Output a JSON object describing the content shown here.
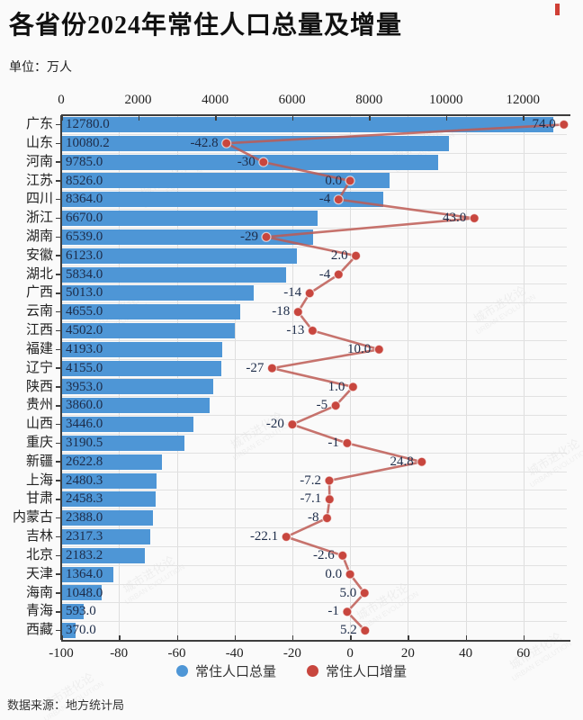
{
  "page": {
    "title": "各省份2024年常住人口总量及增量",
    "unit": "单位：万人",
    "source": "数据来源：地方统计局",
    "watermark_cn": "城市进化论",
    "watermark_en": "URBAN EVOLUTION",
    "accent_red": "#cf3f35",
    "background": "#fafafa"
  },
  "legend": [
    {
      "label": "常住人口总量",
      "color": "#4e96d6"
    },
    {
      "label": "常住人口增量",
      "color": "#c8463e"
    }
  ],
  "chart_data": {
    "type": "bar",
    "orientation": "horizontal",
    "title": "各省份2024年常住人口总量及增量",
    "unit": "万人",
    "grid": true,
    "legend_position": "bottom",
    "categories": [
      "广东",
      "山东",
      "河南",
      "江苏",
      "四川",
      "浙江",
      "湖南",
      "安徽",
      "湖北",
      "广西",
      "云南",
      "江西",
      "福建",
      "辽宁",
      "陕西",
      "贵州",
      "山西",
      "重庆",
      "新疆",
      "上海",
      "甘肃",
      "内蒙古",
      "吉林",
      "北京",
      "天津",
      "海南",
      "青海",
      "西藏"
    ],
    "series": [
      {
        "name": "常住人口总量",
        "type": "bar",
        "color": "#4e96d6",
        "values": [
          12780.0,
          10080.2,
          9785.0,
          8526.0,
          8364.0,
          6670.0,
          6539.0,
          6123.0,
          5834.0,
          5013.0,
          4655.0,
          4502.0,
          4193.0,
          4155.0,
          3953.0,
          3860.0,
          3446.0,
          3190.5,
          2622.8,
          2480.3,
          2458.3,
          2388.0,
          2317.3,
          2183.2,
          1364.0,
          1048.0,
          593.0,
          370.0
        ],
        "labels": [
          "12780.0",
          "10080.2",
          "9785.0",
          "8526.0",
          "8364.0",
          "6670.0",
          "6539.0",
          "6123.0",
          "5834.0",
          "5013.0",
          "4655.0",
          "4502.0",
          "4193.0",
          "4155.0",
          "3953.0",
          "3860.0",
          "3446.0",
          "3190.5",
          "2622.8",
          "2480.3",
          "2458.3",
          "2388.0",
          "2317.3",
          "2183.2",
          "1364.0",
          "1048.0",
          "593.0",
          "370.0"
        ]
      },
      {
        "name": "常住人口增量",
        "type": "line",
        "color": "#c8463e",
        "line_color": "#bd5a53",
        "values": [
          74.0,
          -42.8,
          -30,
          0.0,
          -4,
          43.0,
          -29,
          2.0,
          -4,
          -14,
          -18,
          -13,
          10.0,
          -27,
          1.0,
          -5,
          -20,
          -1,
          24.8,
          -7.2,
          -7.1,
          -8,
          -22.1,
          -2.6,
          0.0,
          5.0,
          -1,
          5.2
        ],
        "labels": [
          "74.0",
          "-42.8",
          "-30",
          "0.0",
          "-4",
          "43.0",
          "-29",
          "2.0",
          "-4",
          "-14",
          "-18",
          "-13",
          "10.0",
          "-27",
          "1.0",
          "-5",
          "-20",
          "-1",
          "24.8",
          "-7.2",
          "-7.1",
          "-8",
          "-22.1",
          "-2.6",
          "0.0",
          "5.0",
          "-1",
          "5.2"
        ]
      }
    ],
    "top_axis": {
      "ticks": [
        0,
        2000,
        4000,
        6000,
        8000,
        10000,
        12000
      ],
      "range": [
        0,
        13140
      ]
    },
    "bottom_axis": {
      "ticks": [
        -100,
        -80,
        -60,
        -40,
        -20,
        0,
        20,
        40,
        60
      ],
      "range": [
        -100,
        75
      ]
    }
  }
}
